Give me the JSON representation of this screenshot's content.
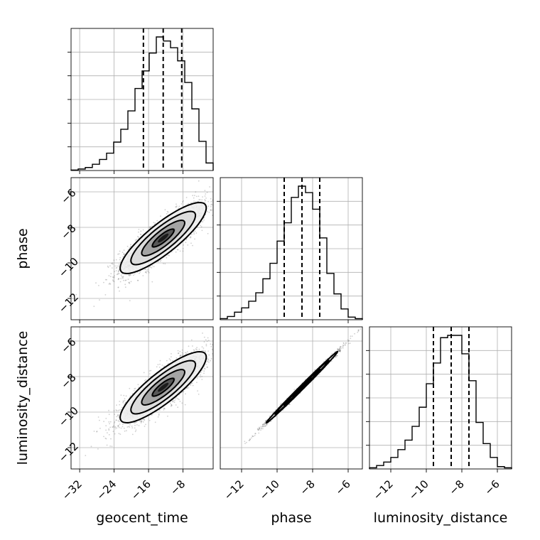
{
  "chart_data": {
    "type": "corner",
    "parameters": [
      "geocent_time",
      "phase",
      "luminosity_distance"
    ],
    "axes": {
      "geocent_time": {
        "range": [
          -34,
          -1
        ],
        "ticks": [
          -32,
          -24,
          -16,
          -8
        ]
      },
      "phase": {
        "range": [
          -13.2,
          -5.2
        ],
        "ticks": [
          -12,
          -10,
          -8,
          -6
        ]
      },
      "luminosity_distance": {
        "range": [
          -13.2,
          -5.2
        ],
        "ticks": [
          -12,
          -10,
          -8,
          -6
        ]
      }
    },
    "quantiles": {
      "geocent_time": [
        -17.2,
        -12.6,
        -8.3
      ],
      "phase": [
        -9.6,
        -8.6,
        -7.6
      ],
      "luminosity_distance": [
        -9.6,
        -8.6,
        -7.6
      ]
    },
    "histograms": {
      "geocent_time": {
        "edges": [
          -34,
          -32.35,
          -30.7,
          -29.05,
          -27.4,
          -25.75,
          -24.1,
          -22.45,
          -20.8,
          -19.15,
          -17.5,
          -15.85,
          -14.2,
          -12.55,
          -10.9,
          -9.25,
          -7.6,
          -5.95,
          -4.3,
          -2.65,
          -1
        ],
        "counts": [
          0.2,
          0.6,
          1.2,
          2.5,
          4.4,
          6.9,
          11.3,
          16.4,
          23.7,
          32.6,
          39.6,
          46.7,
          53.1,
          51.5,
          48.8,
          43.6,
          35.0,
          24.5,
          11.6,
          3.0
        ]
      },
      "phase": {
        "edges": [
          -13.2,
          -12.8,
          -12.4,
          -12.0,
          -11.6,
          -11.2,
          -10.8,
          -10.4,
          -10.0,
          -9.6,
          -9.2,
          -8.8,
          -8.4,
          -8.0,
          -7.6,
          -7.2,
          -6.8,
          -6.4,
          -6.0,
          -5.6,
          -5.2
        ],
        "counts": [
          0.5,
          1.5,
          3.5,
          5.5,
          8.6,
          12.5,
          19.0,
          26.2,
          36.5,
          45.0,
          56.8,
          62.0,
          59.0,
          51.3,
          38.0,
          21.5,
          12.0,
          5.0,
          1.2,
          0.5
        ]
      },
      "luminosity_distance": {
        "edges": [
          -13.2,
          -12.8,
          -12.4,
          -12.0,
          -11.6,
          -11.2,
          -10.8,
          -10.4,
          -10.0,
          -9.6,
          -9.2,
          -8.8,
          -8.4,
          -8.0,
          -7.6,
          -7.2,
          -6.8,
          -6.4,
          -6.0,
          -5.6,
          -5.2
        ],
        "counts": [
          0.5,
          1.5,
          3.0,
          5.0,
          8.4,
          12.5,
          18.5,
          26.8,
          37.0,
          46.0,
          57.0,
          58.0,
          58.0,
          50.0,
          38.3,
          20.2,
          11.0,
          5.0,
          1.0,
          0.5
        ]
      }
    },
    "pairs": [
      {
        "x": "geocent_time",
        "y": "phase",
        "mean": [
          -12.6,
          -8.6
        ],
        "sd": [
          5.0,
          1.0
        ],
        "corr": 0.85
      },
      {
        "x": "geocent_time",
        "y": "luminosity_distance",
        "mean": [
          -12.6,
          -8.6
        ],
        "sd": [
          5.0,
          1.0
        ],
        "corr": 0.85
      },
      {
        "x": "phase",
        "y": "luminosity_distance",
        "mean": [
          -8.6,
          -8.6
        ],
        "sd": [
          1.0,
          1.0
        ],
        "corr": 0.997
      }
    ]
  },
  "colors": {
    "line": "#000000",
    "grid": "#b0b0b0",
    "scatter": "#555555"
  }
}
